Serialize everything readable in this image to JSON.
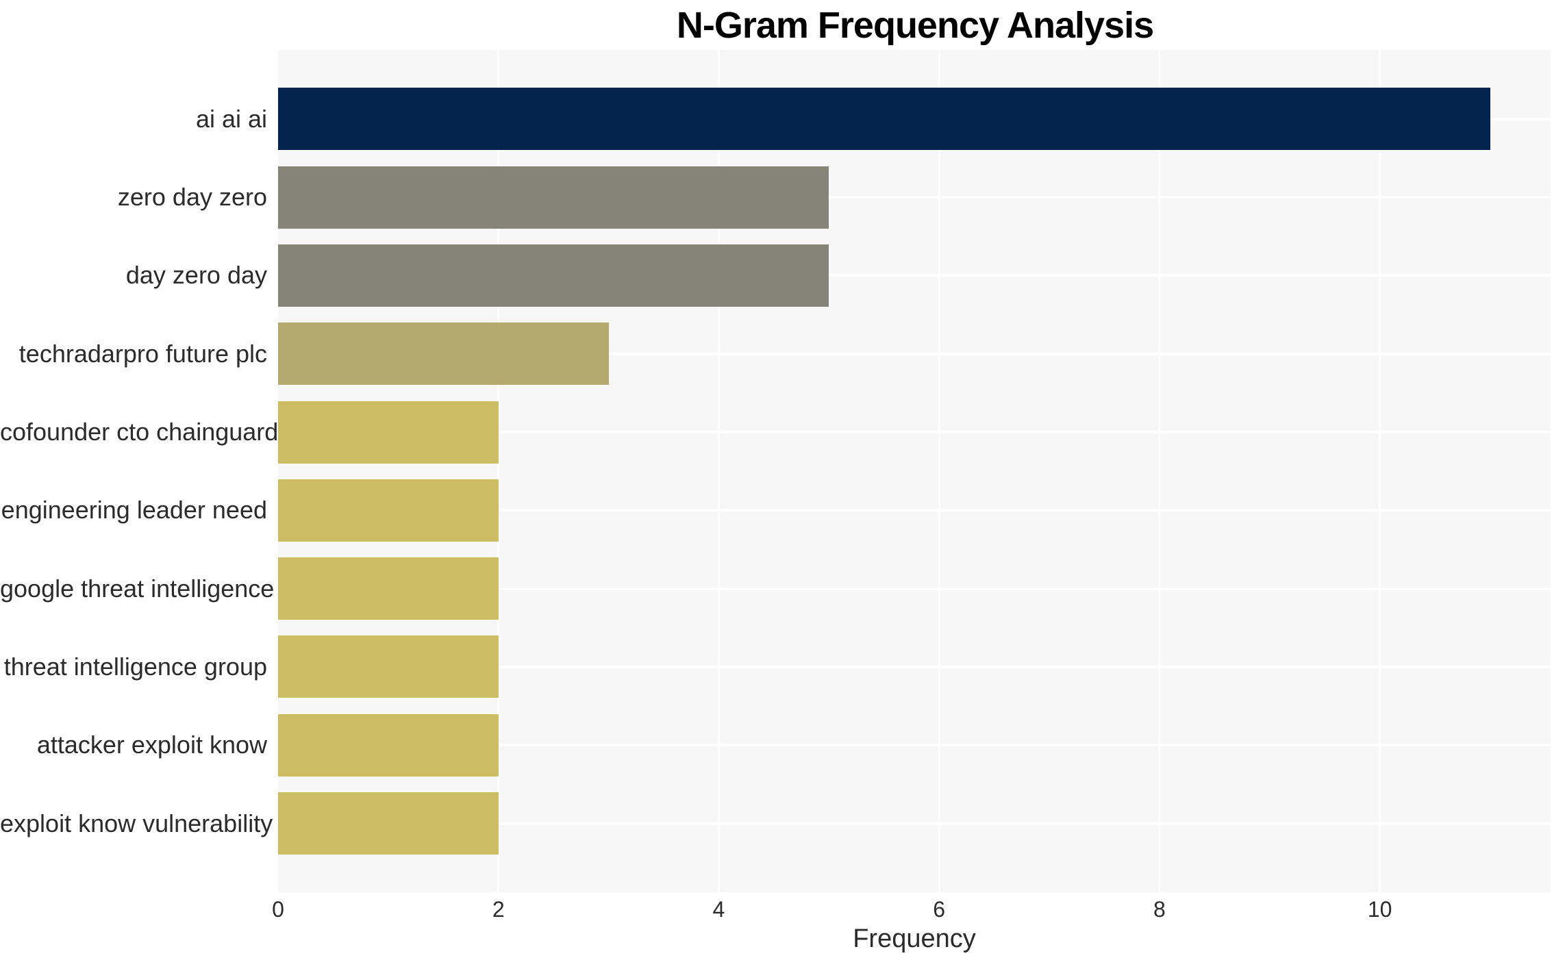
{
  "title": "N-Gram Frequency Analysis",
  "chart_data": {
    "type": "bar",
    "orientation": "horizontal",
    "title": "N-Gram Frequency Analysis",
    "xlabel": "Frequency",
    "ylabel": "",
    "categories": [
      "ai ai ai",
      "zero day zero",
      "day zero day",
      "techradarpro future plc",
      "cofounder cto chainguard",
      "engineering leader need",
      "google threat intelligence",
      "threat intelligence group",
      "attacker exploit know",
      "exploit know vulnerability"
    ],
    "values": [
      11,
      5,
      5,
      3,
      2,
      2,
      2,
      2,
      2,
      2
    ],
    "bar_colors": [
      "#02234c",
      "#868378",
      "#868378",
      "#b3a96f",
      "#ccbc63",
      "#ccbc63",
      "#ccbc63",
      "#ccbc63",
      "#ccbc63",
      "#ccbc63"
    ],
    "xlim": [
      0,
      11.55
    ],
    "xticks": [
      0,
      2,
      4,
      6,
      8,
      10
    ],
    "grid": true,
    "legend": "none",
    "colors": {
      "plot_background": "#f7f7f7",
      "figure_background": "#ffffff",
      "grid_line": "#ffffff",
      "tick_text": "#2b2b2b",
      "title_text": "#000000"
    }
  }
}
